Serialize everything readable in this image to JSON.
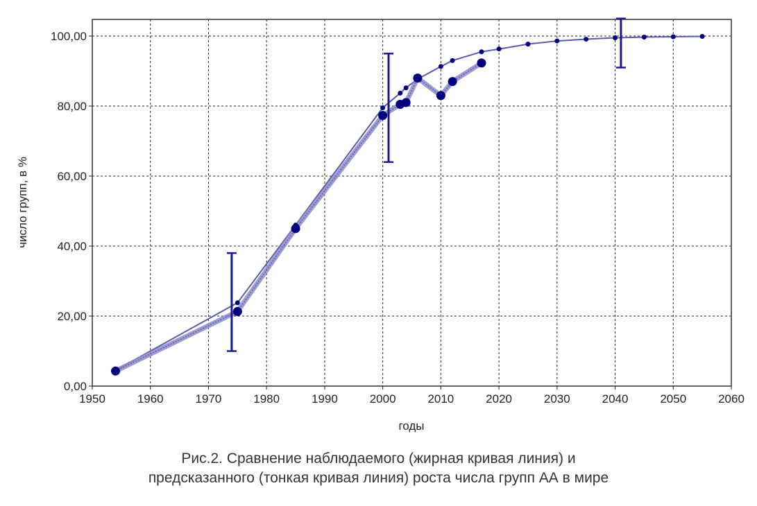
{
  "chart_data": {
    "type": "line",
    "title": "",
    "xlabel": "годы",
    "ylabel": "число групп, в %",
    "xlim": [
      1950,
      2060
    ],
    "ylim": [
      0,
      100
    ],
    "x_ticks": [
      "1950",
      "1960",
      "1970",
      "1980",
      "1990",
      "2000",
      "2010",
      "2020",
      "2030",
      "2040",
      "2050",
      "2060"
    ],
    "y_ticks": [
      "0,00",
      "20,00",
      "40,00",
      "60,00",
      "80,00",
      "100,00"
    ],
    "grid": true,
    "series": [
      {
        "name": "observed (thick curve)",
        "x": [
          1954,
          1975,
          1985,
          2000,
          2003,
          2004,
          2006,
          2010,
          2012,
          2017
        ],
        "y": [
          4.3,
          21.3,
          45.0,
          77.3,
          80.5,
          81.0,
          88.0,
          83.0,
          87.0,
          92.3
        ]
      },
      {
        "name": "predicted (thin curve)",
        "x": [
          1954,
          1975,
          1985,
          2000,
          2003,
          2004,
          2006,
          2010,
          2012,
          2017,
          2020,
          2025,
          2030,
          2035,
          2040,
          2045,
          2050,
          2055
        ],
        "y": [
          4.5,
          23.8,
          46.0,
          79.5,
          83.7,
          85.2,
          87.7,
          91.3,
          93.0,
          95.5,
          96.3,
          97.7,
          98.6,
          99.1,
          99.5,
          99.7,
          99.8,
          99.9
        ]
      }
    ],
    "error_bars": [
      {
        "x": 1974,
        "low": 10,
        "high": 38
      },
      {
        "x": 2001,
        "low": 64,
        "high": 95
      },
      {
        "x": 2041,
        "low": 91,
        "high": 105
      }
    ],
    "colors": {
      "marker": "#000080",
      "line": "#5a5ab0",
      "error": "#1a1a8c"
    }
  },
  "caption": {
    "line1": "Рис.2. Сравнение наблюдаемого (жирная кривая линия) и",
    "line2": "предсказанного (тонкая кривая линия) роста числа групп АА в мире"
  }
}
